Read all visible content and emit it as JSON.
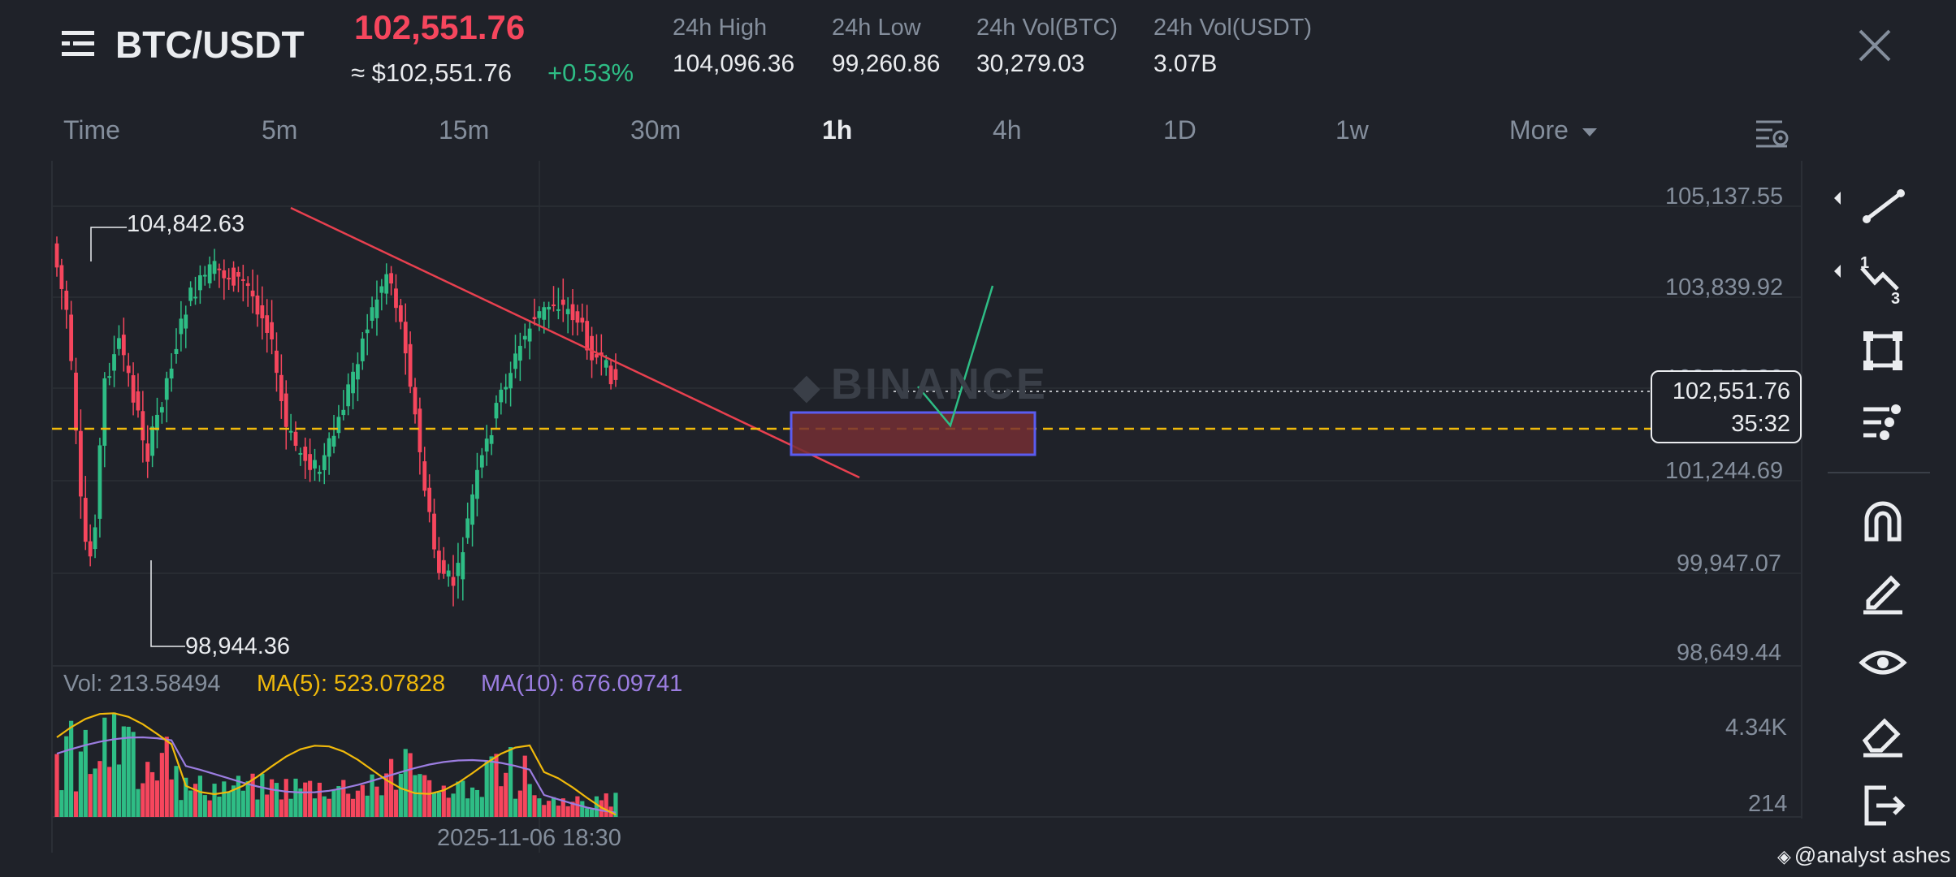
{
  "header": {
    "pair": "BTC/USDT",
    "price": "102,551.76",
    "usd_price": "≈ $102,551.76",
    "change": "+0.53%",
    "stats": [
      {
        "label": "24h High",
        "value": "104,096.36"
      },
      {
        "label": "24h Low",
        "value": "99,260.86"
      },
      {
        "label": "24h Vol(BTC)",
        "value": "30,279.03"
      },
      {
        "label": "24h Vol(USDT)",
        "value": "3.07B"
      }
    ]
  },
  "timeframes": [
    "Time",
    "5m",
    "15m",
    "30m",
    "1h",
    "4h",
    "1D",
    "1w",
    "More"
  ],
  "active_timeframe": "1h",
  "chart": {
    "price_axis": [
      "105,137.55",
      "103,839.92",
      "102,542.30",
      "101,244.69",
      "99,947.07",
      "98,649.44"
    ],
    "high_label": "104,842.63",
    "low_label": "98,944.36",
    "current_price": "102,551.76",
    "countdown": "35:32",
    "watermark": "BINANCE",
    "date_label": "2025-11-06 18:30"
  },
  "volume": {
    "vol_label": "Vol: 213.58494",
    "ma5_label": "MA(5): 523.07828",
    "ma10_label": "MA(10): 676.09741",
    "axis": [
      "4.34K",
      "214"
    ]
  },
  "tools": [
    "trend-line-icon",
    "fib-icon",
    "rectangle-icon",
    "indicator-icon",
    "magnet-icon",
    "pencil-icon",
    "eye-icon",
    "eraser-icon",
    "exit-icon"
  ],
  "footer": {
    "credit": "@analyst ashes"
  },
  "colors": {
    "up": "#2ebd85",
    "down": "#f6465d",
    "bg": "#1f2229",
    "ma5": "#f0b90b",
    "ma10": "#9b7de0",
    "trend": "#e8404f",
    "dashed": "#f0b90b"
  }
}
